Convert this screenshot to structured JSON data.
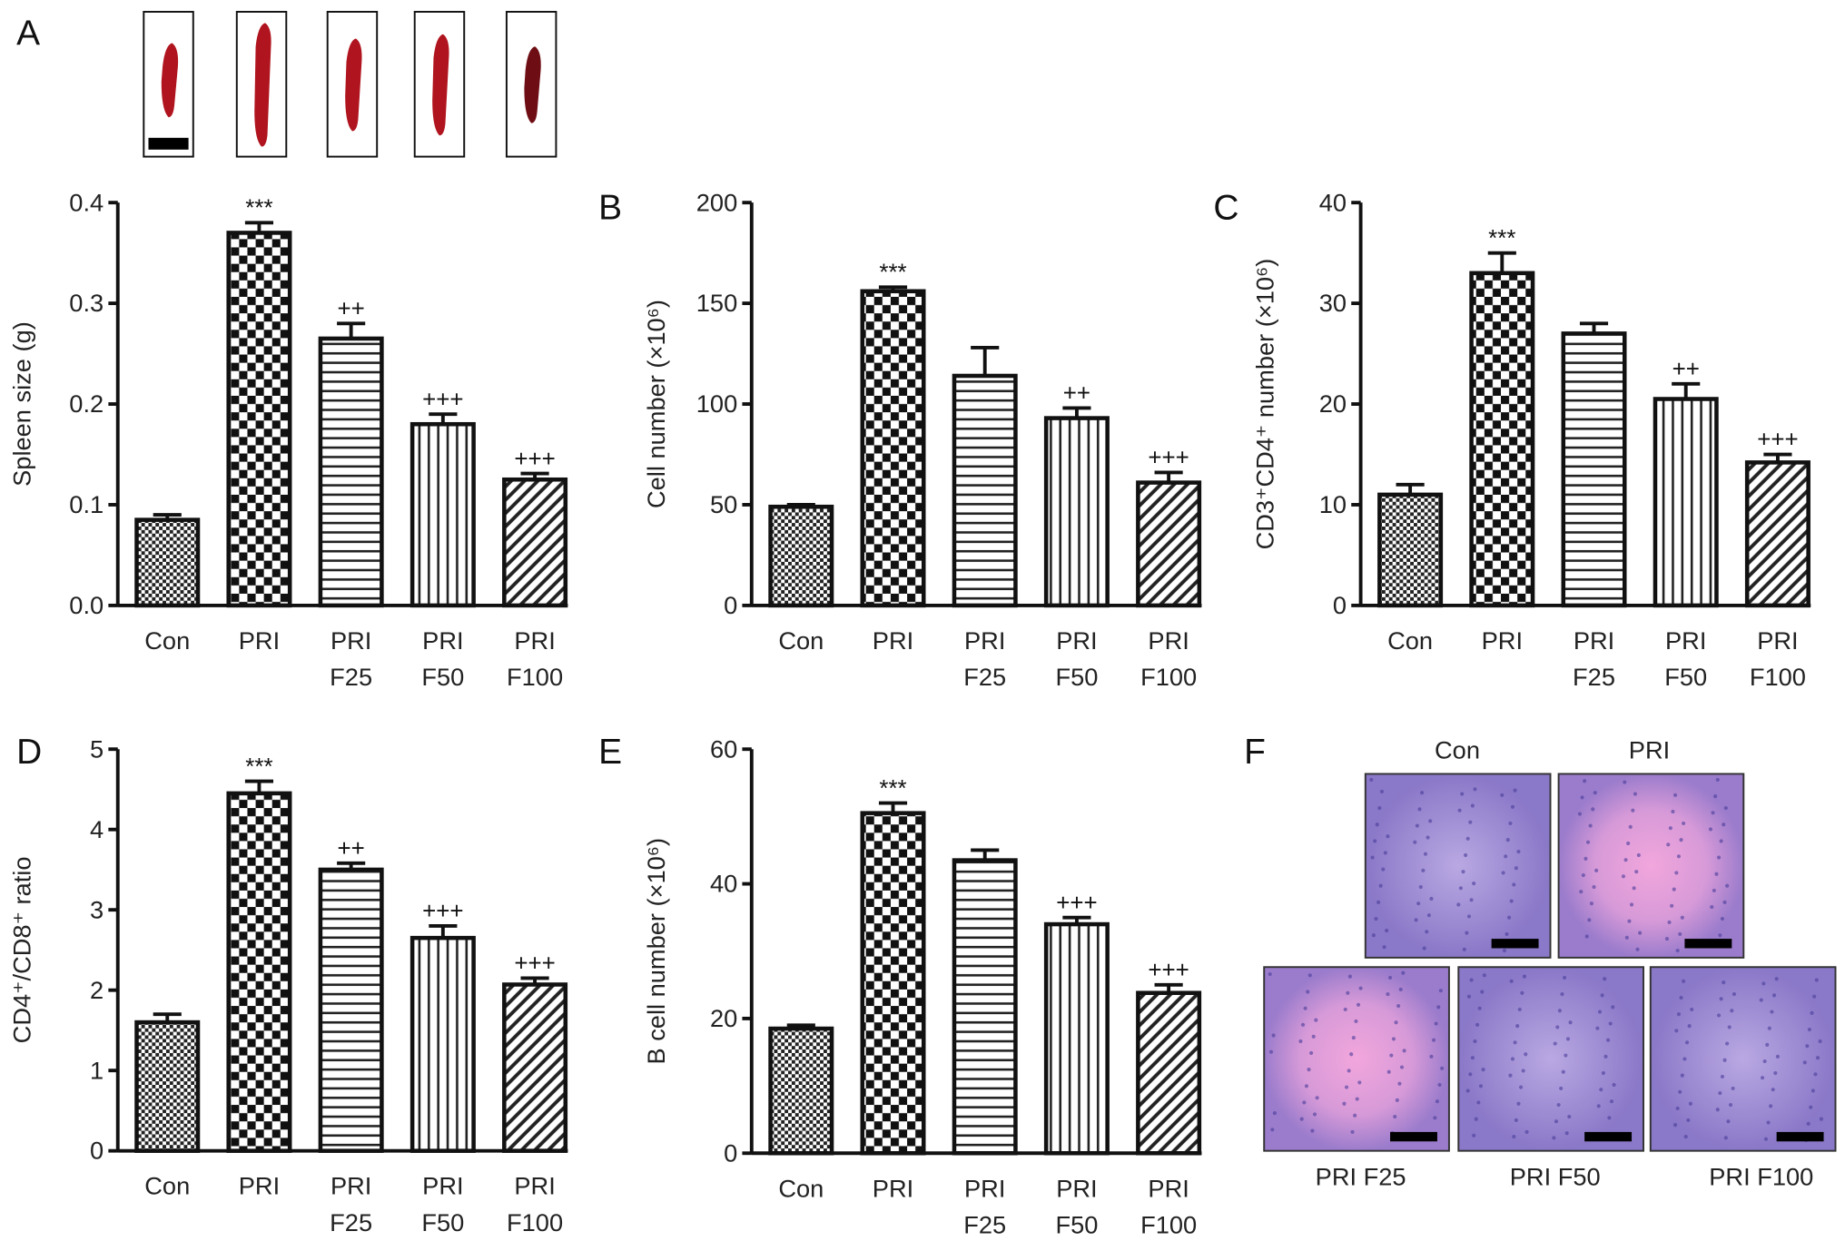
{
  "panels": {
    "A": "A",
    "B": "B",
    "C": "C",
    "D": "D",
    "E": "E",
    "F": "F"
  },
  "histology": {
    "top_labels": [
      "Con",
      "PRI"
    ],
    "bottom_labels": [
      "PRI F25",
      "PRI F50",
      "PRI F100"
    ]
  },
  "colors": {
    "spleen": "#b0141e",
    "spleen_dark": "#6e0d14",
    "he_purple": "#8a78c8",
    "he_pink": "#e88ad0"
  },
  "chart_data": [
    {
      "type": "bar",
      "panel": "A",
      "ylabel": "Spleen size (g)",
      "ylim": [
        0,
        0.4
      ],
      "yticks": [
        "0.0",
        "0.1",
        "0.2",
        "0.3",
        "0.4"
      ],
      "categories": [
        [
          "Con"
        ],
        [
          "PRI"
        ],
        [
          "PRI",
          "F25"
        ],
        [
          "PRI",
          "F50"
        ],
        [
          "PRI",
          "F100"
        ]
      ],
      "values": [
        0.085,
        0.37,
        0.265,
        0.18,
        0.125
      ],
      "errors": [
        0.005,
        0.01,
        0.015,
        0.01,
        0.006
      ],
      "annotations": [
        "",
        "***",
        "++",
        "+++",
        "+++"
      ]
    },
    {
      "type": "bar",
      "panel": "B",
      "ylabel": "Cell number (×10⁶)",
      "ylim": [
        0,
        200
      ],
      "yticks": [
        "0",
        "50",
        "100",
        "150",
        "200"
      ],
      "categories": [
        [
          "Con"
        ],
        [
          "PRI"
        ],
        [
          "PRI",
          "F25"
        ],
        [
          "PRI",
          "F50"
        ],
        [
          "PRI",
          "F100"
        ]
      ],
      "values": [
        49,
        156,
        114,
        93,
        61
      ],
      "errors": [
        1,
        2,
        14,
        5,
        5
      ],
      "annotations": [
        "",
        "***",
        "",
        "++",
        "+++"
      ]
    },
    {
      "type": "bar",
      "panel": "C",
      "ylabel": "CD3⁺CD4⁺ number (×10⁶)",
      "ylim": [
        0,
        40
      ],
      "yticks": [
        "0",
        "10",
        "20",
        "30",
        "40"
      ],
      "categories": [
        [
          "Con"
        ],
        [
          "PRI"
        ],
        [
          "PRI",
          "F25"
        ],
        [
          "PRI",
          "F50"
        ],
        [
          "PRI",
          "F100"
        ]
      ],
      "values": [
        11,
        33,
        27,
        20.5,
        14.2
      ],
      "errors": [
        1,
        2,
        1,
        1.5,
        0.8
      ],
      "annotations": [
        "",
        "***",
        "",
        "++",
        "+++"
      ]
    },
    {
      "type": "bar",
      "panel": "D",
      "ylabel": "CD4⁺/CD8⁺ ratio",
      "ylim": [
        0,
        5
      ],
      "yticks": [
        "0",
        "1",
        "2",
        "3",
        "4",
        "5"
      ],
      "categories": [
        [
          "Con"
        ],
        [
          "PRI"
        ],
        [
          "PRI",
          "F25"
        ],
        [
          "PRI",
          "F50"
        ],
        [
          "PRI",
          "F100"
        ]
      ],
      "values": [
        1.6,
        4.45,
        3.5,
        2.65,
        2.07
      ],
      "errors": [
        0.1,
        0.15,
        0.08,
        0.15,
        0.08
      ],
      "annotations": [
        "",
        "***",
        "++",
        "+++",
        "+++"
      ]
    },
    {
      "type": "bar",
      "panel": "E",
      "ylabel": "B cell number (×10⁶)",
      "ylim": [
        0,
        60
      ],
      "yticks": [
        "0",
        "20",
        "40",
        "60"
      ],
      "categories": [
        [
          "Con"
        ],
        [
          "PRI"
        ],
        [
          "PRI",
          "F25"
        ],
        [
          "PRI",
          "F50"
        ],
        [
          "PRI",
          "F100"
        ]
      ],
      "values": [
        18.5,
        50.5,
        43.5,
        34,
        23.8
      ],
      "errors": [
        0.5,
        1.5,
        1.5,
        1,
        1.2
      ],
      "annotations": [
        "",
        "***",
        "",
        "+++",
        "+++"
      ]
    }
  ]
}
